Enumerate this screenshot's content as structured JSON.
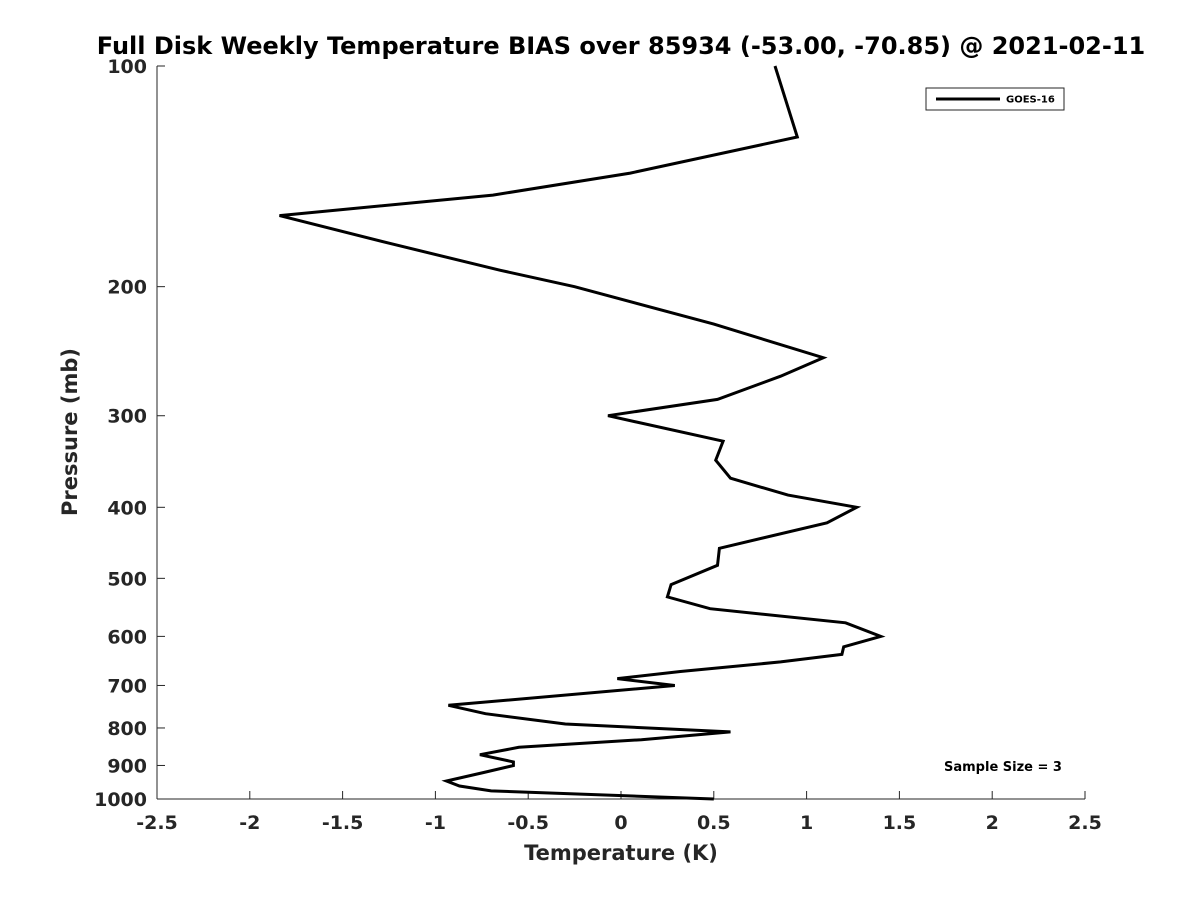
{
  "chart_data": {
    "type": "line",
    "title": "Full Disk Weekly Temperature BIAS over 85934 (-53.00, -70.85) @ 2021-02-11",
    "xlabel": "Temperature (K)",
    "ylabel": "Pressure (mb)",
    "xlim": [
      -2.5,
      2.5
    ],
    "ylim": [
      100,
      1000
    ],
    "y_scale": "log",
    "y_reversed": true,
    "x_ticks": [
      -2.5,
      -2,
      -1.5,
      -1,
      -0.5,
      0,
      0.5,
      1,
      1.5,
      2,
      2.5
    ],
    "x_tick_labels": [
      "-2.5",
      "-2",
      "-1.5",
      "-1",
      "-0.5",
      "0",
      "0.5",
      "1",
      "1.5",
      "2",
      "2.5"
    ],
    "y_ticks": [
      100,
      200,
      300,
      400,
      500,
      600,
      700,
      800,
      900,
      1000
    ],
    "y_tick_labels": [
      "100",
      "200",
      "300",
      "400",
      "500",
      "600",
      "700",
      "800",
      "900",
      "1000"
    ],
    "grid": false,
    "legend_position": "top-right",
    "annotation": "Sample Size = 3",
    "series": [
      {
        "name": "GOES-16",
        "color": "#000000",
        "points": [
          [
            0.83,
            100
          ],
          [
            0.95,
            125
          ],
          [
            0.05,
            140
          ],
          [
            -0.69,
            150
          ],
          [
            -1.84,
            160
          ],
          [
            -1.23,
            175
          ],
          [
            -0.65,
            190
          ],
          [
            -0.25,
            200
          ],
          [
            0.5,
            225
          ],
          [
            1.09,
            250
          ],
          [
            0.86,
            265
          ],
          [
            0.52,
            285
          ],
          [
            -0.07,
            300
          ],
          [
            0.55,
            325
          ],
          [
            0.51,
            345
          ],
          [
            0.59,
            365
          ],
          [
            0.9,
            385
          ],
          [
            1.27,
            400
          ],
          [
            1.11,
            420
          ],
          [
            0.53,
            455
          ],
          [
            0.52,
            480
          ],
          [
            0.27,
            510
          ],
          [
            0.25,
            530
          ],
          [
            0.48,
            550
          ],
          [
            1.21,
            575
          ],
          [
            1.4,
            600
          ],
          [
            1.2,
            620
          ],
          [
            1.19,
            635
          ],
          [
            0.86,
            650
          ],
          [
            0.32,
            670
          ],
          [
            -0.02,
            685
          ],
          [
            0.29,
            700
          ],
          [
            -0.93,
            745
          ],
          [
            -0.73,
            765
          ],
          [
            -0.3,
            790
          ],
          [
            0.59,
            810
          ],
          [
            0.11,
            830
          ],
          [
            -0.55,
            850
          ],
          [
            -0.76,
            870
          ],
          [
            -0.58,
            890
          ],
          [
            -0.58,
            900
          ],
          [
            -0.74,
            920
          ],
          [
            -0.94,
            945
          ],
          [
            -0.87,
            960
          ],
          [
            -0.7,
            975
          ],
          [
            0.5,
            1000
          ]
        ]
      }
    ]
  }
}
